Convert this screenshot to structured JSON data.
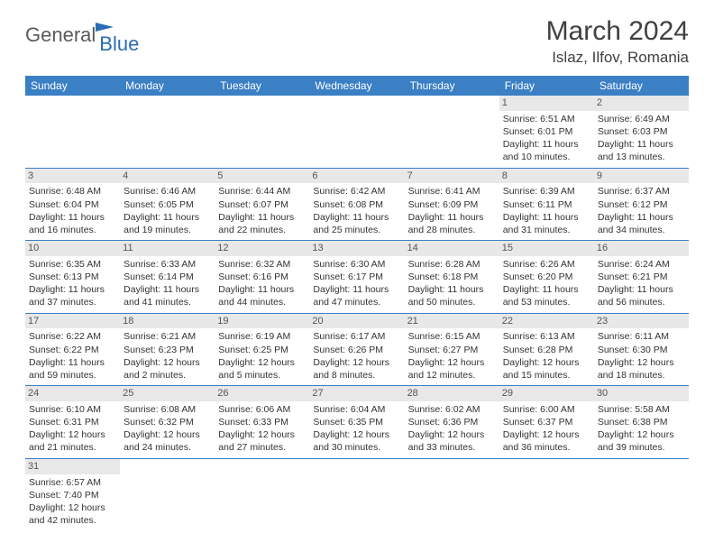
{
  "logo": {
    "general": "General",
    "blue": "Blue"
  },
  "title": "March 2024",
  "location": "Islaz, Ilfov, Romania",
  "colors": {
    "header_bg": "#3b7fc4",
    "header_text": "#ffffff",
    "daynum_bg": "#e8e8e8",
    "border": "#3b7fc4",
    "logo_gray": "#5a5a5a",
    "logo_blue": "#2a6db5"
  },
  "weekdays": [
    "Sunday",
    "Monday",
    "Tuesday",
    "Wednesday",
    "Thursday",
    "Friday",
    "Saturday"
  ],
  "weeks": [
    [
      {
        "empty": true
      },
      {
        "empty": true
      },
      {
        "empty": true
      },
      {
        "empty": true
      },
      {
        "empty": true
      },
      {
        "num": "1",
        "sunrise": "Sunrise: 6:51 AM",
        "sunset": "Sunset: 6:01 PM",
        "daylight": "Daylight: 11 hours and 10 minutes."
      },
      {
        "num": "2",
        "sunrise": "Sunrise: 6:49 AM",
        "sunset": "Sunset: 6:03 PM",
        "daylight": "Daylight: 11 hours and 13 minutes."
      }
    ],
    [
      {
        "num": "3",
        "sunrise": "Sunrise: 6:48 AM",
        "sunset": "Sunset: 6:04 PM",
        "daylight": "Daylight: 11 hours and 16 minutes."
      },
      {
        "num": "4",
        "sunrise": "Sunrise: 6:46 AM",
        "sunset": "Sunset: 6:05 PM",
        "daylight": "Daylight: 11 hours and 19 minutes."
      },
      {
        "num": "5",
        "sunrise": "Sunrise: 6:44 AM",
        "sunset": "Sunset: 6:07 PM",
        "daylight": "Daylight: 11 hours and 22 minutes."
      },
      {
        "num": "6",
        "sunrise": "Sunrise: 6:42 AM",
        "sunset": "Sunset: 6:08 PM",
        "daylight": "Daylight: 11 hours and 25 minutes."
      },
      {
        "num": "7",
        "sunrise": "Sunrise: 6:41 AM",
        "sunset": "Sunset: 6:09 PM",
        "daylight": "Daylight: 11 hours and 28 minutes."
      },
      {
        "num": "8",
        "sunrise": "Sunrise: 6:39 AM",
        "sunset": "Sunset: 6:11 PM",
        "daylight": "Daylight: 11 hours and 31 minutes."
      },
      {
        "num": "9",
        "sunrise": "Sunrise: 6:37 AM",
        "sunset": "Sunset: 6:12 PM",
        "daylight": "Daylight: 11 hours and 34 minutes."
      }
    ],
    [
      {
        "num": "10",
        "sunrise": "Sunrise: 6:35 AM",
        "sunset": "Sunset: 6:13 PM",
        "daylight": "Daylight: 11 hours and 37 minutes."
      },
      {
        "num": "11",
        "sunrise": "Sunrise: 6:33 AM",
        "sunset": "Sunset: 6:14 PM",
        "daylight": "Daylight: 11 hours and 41 minutes."
      },
      {
        "num": "12",
        "sunrise": "Sunrise: 6:32 AM",
        "sunset": "Sunset: 6:16 PM",
        "daylight": "Daylight: 11 hours and 44 minutes."
      },
      {
        "num": "13",
        "sunrise": "Sunrise: 6:30 AM",
        "sunset": "Sunset: 6:17 PM",
        "daylight": "Daylight: 11 hours and 47 minutes."
      },
      {
        "num": "14",
        "sunrise": "Sunrise: 6:28 AM",
        "sunset": "Sunset: 6:18 PM",
        "daylight": "Daylight: 11 hours and 50 minutes."
      },
      {
        "num": "15",
        "sunrise": "Sunrise: 6:26 AM",
        "sunset": "Sunset: 6:20 PM",
        "daylight": "Daylight: 11 hours and 53 minutes."
      },
      {
        "num": "16",
        "sunrise": "Sunrise: 6:24 AM",
        "sunset": "Sunset: 6:21 PM",
        "daylight": "Daylight: 11 hours and 56 minutes."
      }
    ],
    [
      {
        "num": "17",
        "sunrise": "Sunrise: 6:22 AM",
        "sunset": "Sunset: 6:22 PM",
        "daylight": "Daylight: 11 hours and 59 minutes."
      },
      {
        "num": "18",
        "sunrise": "Sunrise: 6:21 AM",
        "sunset": "Sunset: 6:23 PM",
        "daylight": "Daylight: 12 hours and 2 minutes."
      },
      {
        "num": "19",
        "sunrise": "Sunrise: 6:19 AM",
        "sunset": "Sunset: 6:25 PM",
        "daylight": "Daylight: 12 hours and 5 minutes."
      },
      {
        "num": "20",
        "sunrise": "Sunrise: 6:17 AM",
        "sunset": "Sunset: 6:26 PM",
        "daylight": "Daylight: 12 hours and 8 minutes."
      },
      {
        "num": "21",
        "sunrise": "Sunrise: 6:15 AM",
        "sunset": "Sunset: 6:27 PM",
        "daylight": "Daylight: 12 hours and 12 minutes."
      },
      {
        "num": "22",
        "sunrise": "Sunrise: 6:13 AM",
        "sunset": "Sunset: 6:28 PM",
        "daylight": "Daylight: 12 hours and 15 minutes."
      },
      {
        "num": "23",
        "sunrise": "Sunrise: 6:11 AM",
        "sunset": "Sunset: 6:30 PM",
        "daylight": "Daylight: 12 hours and 18 minutes."
      }
    ],
    [
      {
        "num": "24",
        "sunrise": "Sunrise: 6:10 AM",
        "sunset": "Sunset: 6:31 PM",
        "daylight": "Daylight: 12 hours and 21 minutes."
      },
      {
        "num": "25",
        "sunrise": "Sunrise: 6:08 AM",
        "sunset": "Sunset: 6:32 PM",
        "daylight": "Daylight: 12 hours and 24 minutes."
      },
      {
        "num": "26",
        "sunrise": "Sunrise: 6:06 AM",
        "sunset": "Sunset: 6:33 PM",
        "daylight": "Daylight: 12 hours and 27 minutes."
      },
      {
        "num": "27",
        "sunrise": "Sunrise: 6:04 AM",
        "sunset": "Sunset: 6:35 PM",
        "daylight": "Daylight: 12 hours and 30 minutes."
      },
      {
        "num": "28",
        "sunrise": "Sunrise: 6:02 AM",
        "sunset": "Sunset: 6:36 PM",
        "daylight": "Daylight: 12 hours and 33 minutes."
      },
      {
        "num": "29",
        "sunrise": "Sunrise: 6:00 AM",
        "sunset": "Sunset: 6:37 PM",
        "daylight": "Daylight: 12 hours and 36 minutes."
      },
      {
        "num": "30",
        "sunrise": "Sunrise: 5:58 AM",
        "sunset": "Sunset: 6:38 PM",
        "daylight": "Daylight: 12 hours and 39 minutes."
      }
    ],
    [
      {
        "num": "31",
        "sunrise": "Sunrise: 6:57 AM",
        "sunset": "Sunset: 7:40 PM",
        "daylight": "Daylight: 12 hours and 42 minutes."
      },
      {
        "empty": true
      },
      {
        "empty": true
      },
      {
        "empty": true
      },
      {
        "empty": true
      },
      {
        "empty": true
      },
      {
        "empty": true
      }
    ]
  ]
}
